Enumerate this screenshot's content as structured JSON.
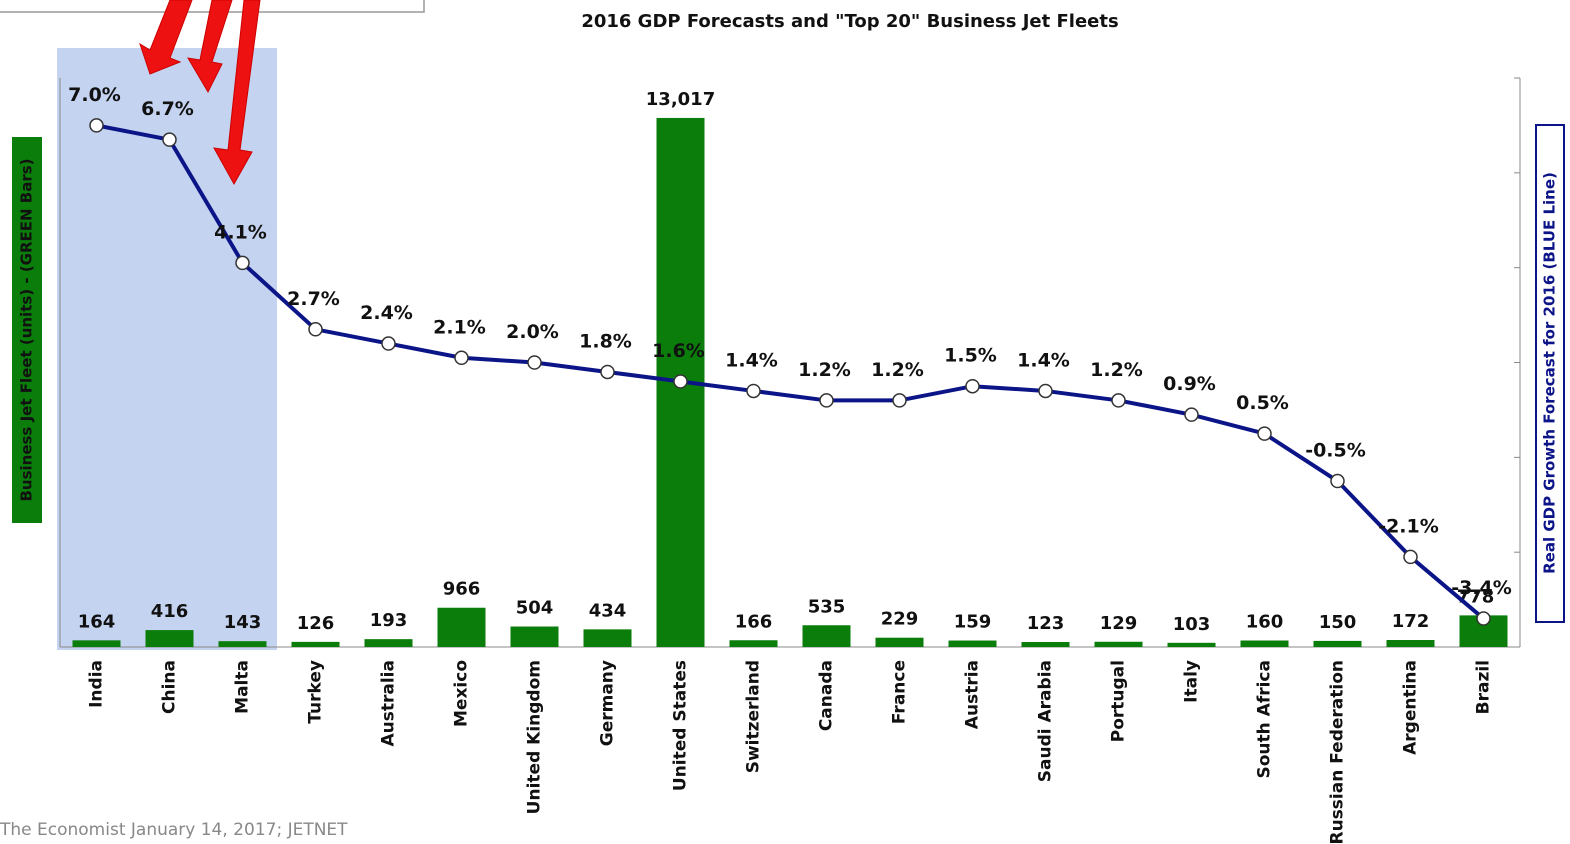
{
  "chart_data": {
    "type": "bar_line",
    "title": "2016 GDP Forecasts and \"Top 20\" Business Jet Fleets",
    "y_label": "Business Jet Fleet (units) - (GREEN Bars)",
    "y2_label": "Real GDP Growth Forecast for 2016 (BLUE Line)",
    "source": "The Economist January 14, 2017; JETNET",
    "categories": [
      "India",
      "China",
      "Malta",
      "Turkey",
      "Australia",
      "Mexico",
      "United Kingdom",
      "Germany",
      "United States",
      "Switzerland",
      "Canada",
      "France",
      "Austria",
      "Saudi Arabia",
      "Portugal",
      "Italy",
      "South Africa",
      "Russian Federation",
      "Argentina",
      "Brazil"
    ],
    "series": [
      {
        "name": "Business Jet Fleet",
        "type": "bar",
        "color": "#0a7d0a",
        "values": [
          164,
          416,
          143,
          126,
          193,
          966,
          504,
          434,
          13017,
          166,
          535,
          229,
          159,
          123,
          129,
          103,
          160,
          150,
          172,
          778
        ],
        "value_labels": [
          "164",
          "416",
          "143",
          "126",
          "193",
          "966",
          "504",
          "434",
          "13,017",
          "166",
          "535",
          "229",
          "159",
          "123",
          "129",
          "103",
          "160",
          "150",
          "172",
          "778"
        ]
      },
      {
        "name": "Real GDP Growth Forecast",
        "type": "line",
        "axis": "y2",
        "color": "#0c1588",
        "values": [
          7.0,
          6.7,
          4.1,
          2.7,
          2.4,
          2.1,
          2.0,
          1.8,
          1.6,
          1.4,
          1.2,
          1.2,
          1.5,
          1.4,
          1.2,
          0.9,
          0.5,
          -0.5,
          -2.1,
          -3.4
        ],
        "value_labels": [
          "7.0%",
          "6.7%",
          "4.1%",
          "2.7%",
          "2.4%",
          "2.1%",
          "2.0%",
          "1.8%",
          "1.6%",
          "1.4%",
          "1.2%",
          "1.2%",
          "1.5%",
          "1.4%",
          "1.2%",
          "0.9%",
          "0.5%",
          "-0.5%",
          "-2.1%",
          "-3.4%"
        ]
      }
    ],
    "ylim": [
      0,
      14000
    ],
    "y2lim": [
      -4,
      8
    ],
    "y2ticks": [
      -4,
      -2,
      0,
      2,
      4,
      6,
      8
    ]
  }
}
